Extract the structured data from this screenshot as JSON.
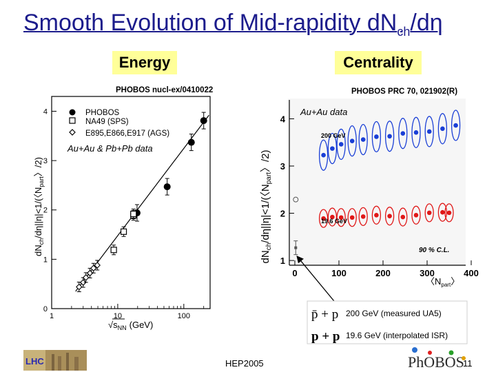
{
  "slide": {
    "title_main": "Smooth Evolution of Mid-rapidity dN",
    "title_sub": "ch",
    "title_tail": "/dη",
    "page_number": "11",
    "conference": "HEP2005",
    "logo_left": "LHC",
    "logo_right": "PhOBOS"
  },
  "tags": {
    "energy": "Energy",
    "centrality": "Centrality"
  },
  "left_panel": {
    "citation": "PHOBOS nucl-ex/0410022",
    "annotation": "Au+Au & Pb+Pb data",
    "legend": [
      "PHOBOS",
      "NA49 (SPS)",
      "E895,E866,E917 (AGS)"
    ],
    "ylabel_text": "dN",
    "ylabel_sub": "ch",
    "ylabel_rest": "/dη||η|<1/(〈N",
    "ylabel_sub2": "part",
    "ylabel_end": "〉/2)",
    "xlabel_pre": "√s",
    "xlabel_sub": "NN",
    "xlabel_post": "(GeV)",
    "x_tick_labels": [
      "1",
      "10",
      "100"
    ],
    "y_tick_labels": [
      "0",
      "1",
      "2",
      "3",
      "4"
    ]
  },
  "right_panel": {
    "citation": "PHOBOS PRC 70, 021902(R)",
    "annotation": "Au+Au data",
    "series_labels": [
      "200 GeV",
      "19.6 GeV"
    ],
    "cl_label": "90 % C.L.",
    "xlabel": "〈N",
    "xlabel_sub": "part",
    "xlabel_end": "〉",
    "x_tick_labels": [
      "0",
      "100",
      "200",
      "300",
      "400"
    ],
    "y_tick_labels": [
      "1",
      "2",
      "3",
      "4"
    ]
  },
  "pp_legend": [
    {
      "symbol": "p̄ + p",
      "text": "200 GeV (measured UA5)"
    },
    {
      "symbol": "p + p",
      "text": "19.6 GeV (interpolated ISR)"
    }
  ],
  "colors": {
    "title": "#1c1c8c",
    "tag_bg": "#ffff99",
    "s200": "#1a3fd6",
    "s19": "#e01818"
  },
  "chart_data": [
    {
      "type": "scatter",
      "title": "Energy",
      "xlabel": "√sNN (GeV)",
      "ylabel": "dNch/dη||η|<1/(〈Npart〉/2)",
      "xscale": "log",
      "xlim": [
        1,
        250
      ],
      "ylim": [
        0,
        4.3
      ],
      "series": [
        {
          "name": "PHOBOS",
          "x": [
            19.6,
            56,
            130,
            200
          ],
          "y": [
            1.94,
            2.47,
            3.37,
            3.81
          ]
        },
        {
          "name": "NA49 (SPS)",
          "x": [
            8.7,
            12.3,
            17.3,
            17.3
          ],
          "y": [
            1.19,
            1.56,
            1.89,
            1.92
          ]
        },
        {
          "name": "E895,E866,E917 (AGS)",
          "x": [
            2.6,
            3.0,
            3.3,
            3.8,
            4.3,
            4.9
          ],
          "y": [
            0.44,
            0.53,
            0.63,
            0.72,
            0.82,
            0.88
          ]
        }
      ],
      "fit_line": {
        "x": [
          2.3,
          240
        ],
        "y": [
          0.35,
          3.92
        ]
      }
    },
    {
      "type": "scatter",
      "title": "Centrality",
      "xlabel": "〈Npart〉",
      "ylabel": "dNch/dη||η|<1/(〈Npart〉/2)",
      "xlim": [
        0,
        400
      ],
      "ylim": [
        0.9,
        4.4
      ],
      "series": [
        {
          "name": "200 GeV",
          "x": [
            65,
            85,
            105,
            130,
            155,
            185,
            215,
            245,
            275,
            305,
            335,
            365
          ],
          "y": [
            3.23,
            3.37,
            3.46,
            3.53,
            3.56,
            3.62,
            3.63,
            3.69,
            3.71,
            3.73,
            3.79,
            3.86
          ]
        },
        {
          "name": "19.6 GeV",
          "x": [
            65,
            85,
            105,
            130,
            155,
            185,
            215,
            245,
            275,
            305,
            335,
            350
          ],
          "y": [
            1.89,
            1.92,
            1.91,
            1.91,
            1.93,
            1.96,
            1.94,
            1.92,
            1.96,
            2.01,
            2.02,
            2.01
          ]
        },
        {
          "name": "p̄ + p 200 GeV (measured UA5)",
          "x": [
            2
          ],
          "y": [
            2.29
          ]
        },
        {
          "name": "p + p 19.6 GeV (interpolated ISR)",
          "x": [
            2
          ],
          "y": [
            1.27
          ]
        }
      ]
    }
  ]
}
